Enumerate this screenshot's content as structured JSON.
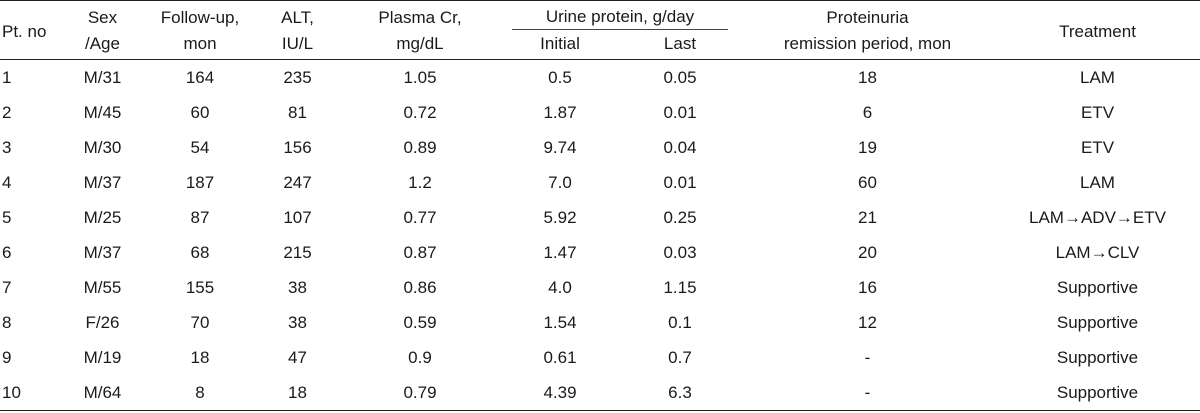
{
  "headers": {
    "pt_no": "Pt. no",
    "sex_age_1": "Sex",
    "sex_age_2": "/Age",
    "followup_1": "Follow-up,",
    "followup_2": "mon",
    "alt_1": "ALT,",
    "alt_2": "IU/L",
    "cr_1": "Plasma Cr,",
    "cr_2": "mg/dL",
    "urine_group": "Urine protein, g/day",
    "initial": "Initial",
    "last": "Last",
    "remission_1": "Proteinuria",
    "remission_2": "remission period, mon",
    "treatment": "Treatment"
  },
  "rows": [
    {
      "pt": "1",
      "sex_age": "M/31",
      "followup": "164",
      "alt": "235",
      "cr": "1.05",
      "initial": "0.5",
      "last": "0.05",
      "remission": "18",
      "treatment": "LAM"
    },
    {
      "pt": "2",
      "sex_age": "M/45",
      "followup": "60",
      "alt": "81",
      "cr": "0.72",
      "initial": "1.87",
      "last": "0.01",
      "remission": "6",
      "treatment": "ETV"
    },
    {
      "pt": "3",
      "sex_age": "M/30",
      "followup": "54",
      "alt": "156",
      "cr": "0.89",
      "initial": "9.74",
      "last": "0.04",
      "remission": "19",
      "treatment": "ETV"
    },
    {
      "pt": "4",
      "sex_age": "M/37",
      "followup": "187",
      "alt": "247",
      "cr": "1.2",
      "initial": "7.0",
      "last": "0.01",
      "remission": "60",
      "treatment": "LAM"
    },
    {
      "pt": "5",
      "sex_age": "M/25",
      "followup": "87",
      "alt": "107",
      "cr": "0.77",
      "initial": "5.92",
      "last": "0.25",
      "remission": "21",
      "treatment": "LAM→ADV→ETV"
    },
    {
      "pt": "6",
      "sex_age": "M/37",
      "followup": "68",
      "alt": "215",
      "cr": "0.87",
      "initial": "1.47",
      "last": "0.03",
      "remission": "20",
      "treatment": "LAM→CLV"
    },
    {
      "pt": "7",
      "sex_age": "M/55",
      "followup": "155",
      "alt": "38",
      "cr": "0.86",
      "initial": "4.0",
      "last": "1.15",
      "remission": "16",
      "treatment": "Supportive"
    },
    {
      "pt": "8",
      "sex_age": "F/26",
      "followup": "70",
      "alt": "38",
      "cr": "0.59",
      "initial": "1.54",
      "last": "0.1",
      "remission": "12",
      "treatment": "Supportive"
    },
    {
      "pt": "9",
      "sex_age": "M/19",
      "followup": "18",
      "alt": "47",
      "cr": "0.9",
      "initial": "0.61",
      "last": "0.7",
      "remission": "-",
      "treatment": "Supportive"
    },
    {
      "pt": "10",
      "sex_age": "M/64",
      "followup": "8",
      "alt": "18",
      "cr": "0.79",
      "initial": "4.39",
      "last": "6.3",
      "remission": "-",
      "treatment": "Supportive"
    }
  ]
}
